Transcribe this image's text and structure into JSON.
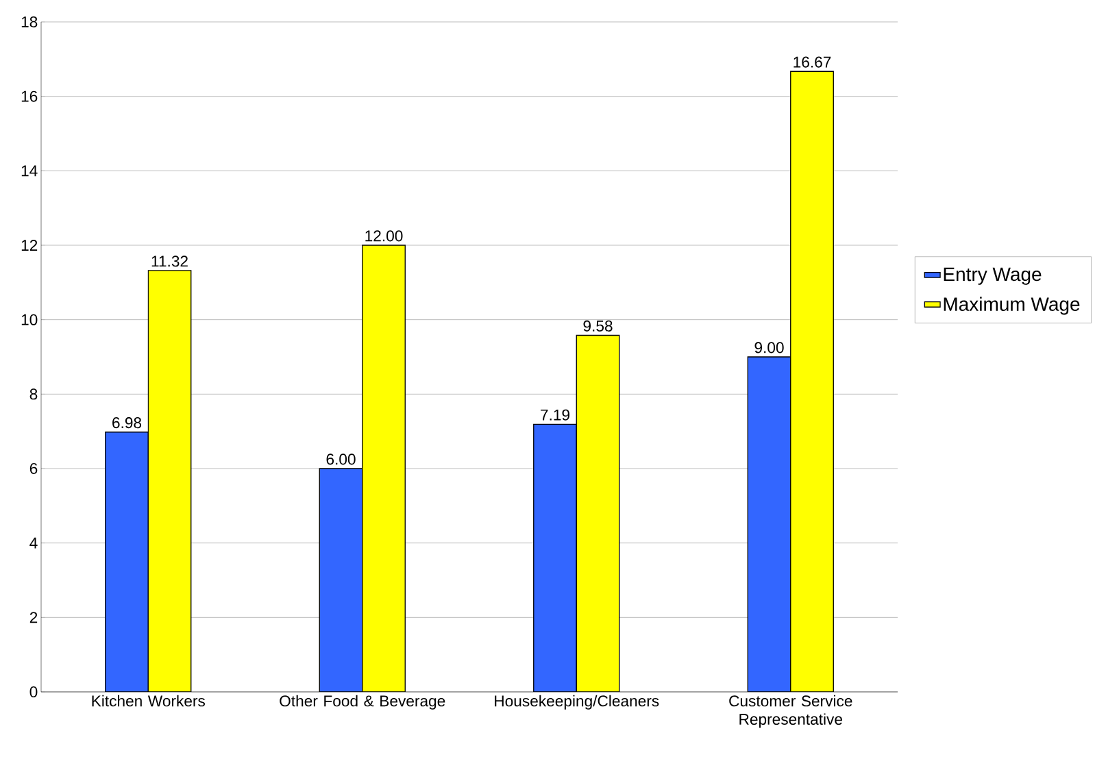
{
  "chart_data": {
    "type": "bar",
    "categories": [
      "Kitchen Workers",
      "Other Food & Beverage",
      "Housekeeping/Cleaners",
      "Customer Service Representative"
    ],
    "series": [
      {
        "name": "Entry Wage",
        "color": "#3366ff",
        "values": [
          6.98,
          6.0,
          7.19,
          9.0
        ],
        "value_labels": [
          "6.98",
          "6.00",
          "7.19",
          "9.00"
        ]
      },
      {
        "name": "Maximum Wage",
        "color": "#ffff00",
        "values": [
          11.32,
          12.0,
          9.58,
          16.67
        ],
        "value_labels": [
          "11.32",
          "12.00",
          "9.58",
          "16.67"
        ]
      }
    ],
    "ylim": [
      0,
      18
    ],
    "yticks": [
      0,
      2,
      4,
      6,
      8,
      10,
      12,
      14,
      16,
      18
    ],
    "grid": "y",
    "legend": "right"
  }
}
